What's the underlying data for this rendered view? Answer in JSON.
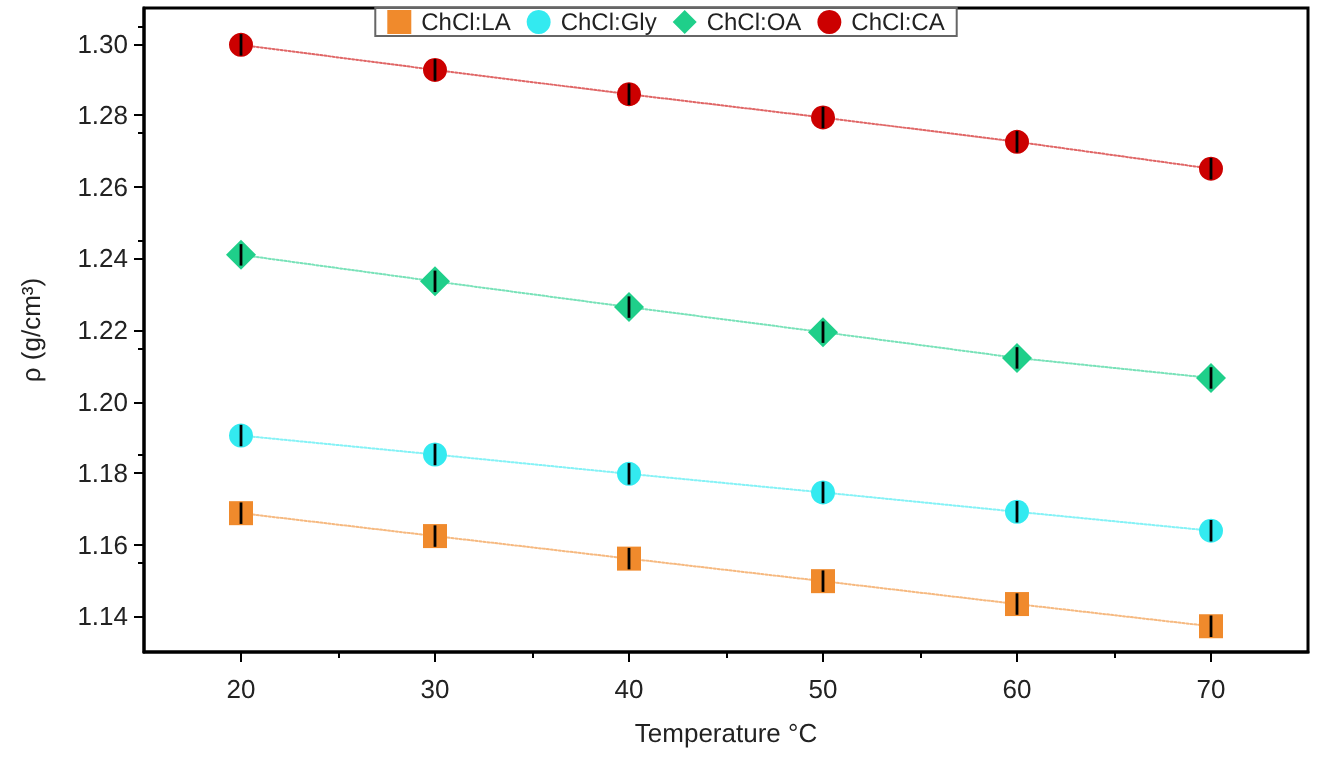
{
  "chart_data": {
    "type": "line",
    "line_style": "dotted",
    "xlabel": "Temperature °C",
    "ylabel": "ρ (g/cm³)",
    "x": [
      20,
      30,
      40,
      50,
      60,
      70
    ],
    "series": [
      {
        "name": "ChCl:LA",
        "color": "#f08a2c",
        "marker": "square",
        "values": [
          1.1688,
          1.1624,
          1.1561,
          1.1498,
          1.1434,
          1.1372
        ],
        "errors": [
          0.003,
          0.003,
          0.003,
          0.003,
          0.003,
          0.003
        ]
      },
      {
        "name": "ChCl:Gly",
        "color": "#33eaf0",
        "marker": "circle",
        "values": [
          1.1905,
          1.1852,
          1.1798,
          1.1746,
          1.1692,
          1.1639
        ],
        "errors": [
          0.003,
          0.003,
          0.003,
          0.003,
          0.003,
          0.003
        ]
      },
      {
        "name": "ChCl:OA",
        "color": "#1fcf8a",
        "marker": "diamond",
        "values": [
          1.241,
          1.2336,
          1.2264,
          1.2194,
          1.2122,
          1.2066
        ],
        "errors": [
          0.003,
          0.003,
          0.003,
          0.003,
          0.003,
          0.003
        ]
      },
      {
        "name": "ChCl:CA",
        "color": "#cc0000",
        "marker": "circle",
        "values": [
          1.2997,
          1.2927,
          1.2859,
          1.2794,
          1.2726,
          1.2651
        ],
        "errors": [
          0.003,
          0.003,
          0.003,
          0.003,
          0.003,
          0.003
        ]
      }
    ],
    "xlim": [
      15,
      75
    ],
    "xticks": [
      20,
      30,
      40,
      50,
      60,
      70
    ],
    "ylim": [
      1.13,
      1.31
    ],
    "yticks": [
      1.14,
      1.16,
      1.18,
      {
        "value": 1.2,
        "label": "1.20"
      },
      1.22,
      1.24,
      1.26,
      1.28,
      {
        "value": 1.3,
        "label": "1.30"
      }
    ],
    "grid": false,
    "legend": "top"
  }
}
